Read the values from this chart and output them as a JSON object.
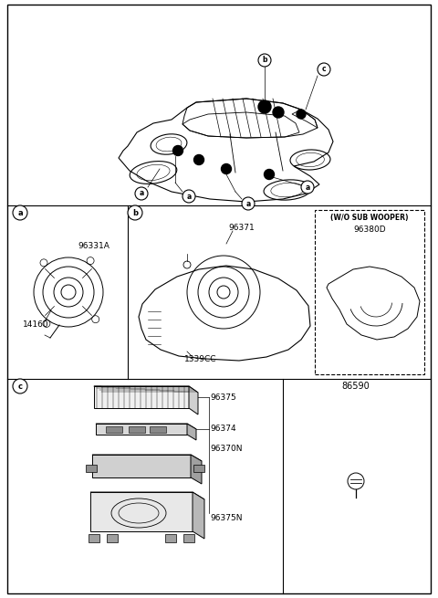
{
  "bg_color": "#ffffff",
  "fig_width": 4.8,
  "fig_height": 6.55,
  "dpi": 100,
  "labels": {
    "part_96331A": "96331A",
    "part_14160": "14160",
    "part_96371": "96371",
    "part_1339CC": "1339CC",
    "part_wo_sub": "(W/O SUB WOOPER)",
    "part_96380D": "96380D",
    "part_86590": "86590",
    "part_96375": "96375",
    "part_96374": "96374",
    "part_96370N": "96370N",
    "part_96375N": "96375N"
  }
}
